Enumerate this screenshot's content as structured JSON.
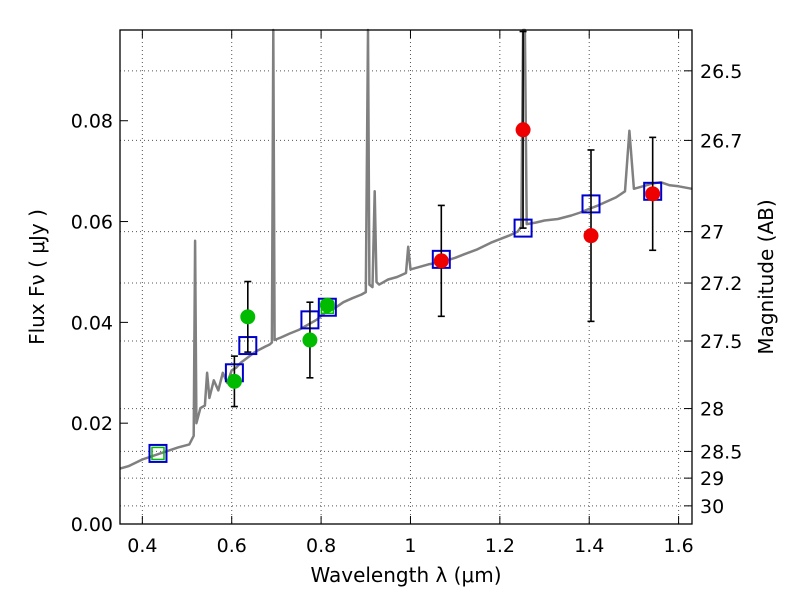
{
  "chart_data": {
    "type": "scatter",
    "xlabel": "Wavelength  λ (μm)",
    "ylabel": "Flux  Fν  ( μJy )",
    "y2label": "Magnitude (AB)",
    "xlim": [
      0.35,
      1.63
    ],
    "ylim": [
      0.0,
      0.098
    ],
    "grid": true,
    "x_ticks": [
      0.4,
      0.6,
      0.8,
      1.0,
      1.2,
      1.4,
      1.6
    ],
    "x_tick_labels": [
      "0.4",
      "0.6",
      "0.8",
      "1",
      "1.2",
      "1.4",
      "1.6"
    ],
    "y_ticks": [
      0.0,
      0.02,
      0.04,
      0.06,
      0.08
    ],
    "y_tick_labels": [
      "0.00",
      "0.02",
      "0.04",
      "0.06",
      "0.08"
    ],
    "y2_ticks": [
      {
        "label": "26.5",
        "flux": 0.0899
      },
      {
        "label": "26.7",
        "flux": 0.0761
      },
      {
        "label": "27",
        "flux": 0.058
      },
      {
        "label": "27.2",
        "flux": 0.0478
      },
      {
        "label": "27.5",
        "flux": 0.0363
      },
      {
        "label": "28",
        "flux": 0.0229
      },
      {
        "label": "28.5",
        "flux": 0.0144
      },
      {
        "label": "29",
        "flux": 0.0091
      },
      {
        "label": "30",
        "flux": 0.0036
      }
    ],
    "colors": {
      "model": "#808080",
      "green": "#00bb00",
      "red": "#ee0000",
      "box": "#0000cc",
      "errorbar": "#000000",
      "grid": "#555555"
    },
    "series": [
      {
        "kind": "model_spectrum",
        "points": [
          [
            0.35,
            0.011
          ],
          [
            0.37,
            0.0115
          ],
          [
            0.4,
            0.0128
          ],
          [
            0.44,
            0.014
          ],
          [
            0.48,
            0.0152
          ],
          [
            0.505,
            0.0158
          ],
          [
            0.515,
            0.0175
          ],
          [
            0.518,
            0.0562
          ],
          [
            0.521,
            0.02
          ],
          [
            0.53,
            0.023
          ],
          [
            0.54,
            0.0235
          ],
          [
            0.545,
            0.03
          ],
          [
            0.55,
            0.025
          ],
          [
            0.56,
            0.0285
          ],
          [
            0.57,
            0.0265
          ],
          [
            0.58,
            0.03
          ],
          [
            0.59,
            0.028
          ],
          [
            0.6,
            0.0305
          ],
          [
            0.61,
            0.031
          ],
          [
            0.62,
            0.032
          ],
          [
            0.635,
            0.033
          ],
          [
            0.65,
            0.034
          ],
          [
            0.66,
            0.0345
          ],
          [
            0.675,
            0.0352
          ],
          [
            0.685,
            0.0356
          ],
          [
            0.69,
            0.036
          ],
          [
            0.693,
            0.098
          ],
          [
            0.696,
            0.0365
          ],
          [
            0.71,
            0.037
          ],
          [
            0.73,
            0.0378
          ],
          [
            0.75,
            0.0385
          ],
          [
            0.77,
            0.0395
          ],
          [
            0.79,
            0.0405
          ],
          [
            0.81,
            0.042
          ],
          [
            0.83,
            0.0428
          ],
          [
            0.85,
            0.044
          ],
          [
            0.87,
            0.0448
          ],
          [
            0.89,
            0.0455
          ],
          [
            0.9,
            0.046
          ],
          [
            0.905,
            0.098
          ],
          [
            0.908,
            0.0475
          ],
          [
            0.915,
            0.047
          ],
          [
            0.92,
            0.066
          ],
          [
            0.924,
            0.048
          ],
          [
            0.93,
            0.0475
          ],
          [
            0.95,
            0.0485
          ],
          [
            0.97,
            0.049
          ],
          [
            0.99,
            0.0498
          ],
          [
            0.995,
            0.055
          ],
          [
            1.0,
            0.0505
          ],
          [
            1.02,
            0.051
          ],
          [
            1.04,
            0.0515
          ],
          [
            1.07,
            0.052
          ],
          [
            1.1,
            0.0528
          ],
          [
            1.12,
            0.0535
          ],
          [
            1.15,
            0.0545
          ],
          [
            1.18,
            0.0558
          ],
          [
            1.2,
            0.0565
          ],
          [
            1.22,
            0.0572
          ],
          [
            1.24,
            0.058
          ],
          [
            1.248,
            0.059
          ],
          [
            1.252,
            0.098
          ],
          [
            1.256,
            0.098
          ],
          [
            1.26,
            0.0595
          ],
          [
            1.28,
            0.0598
          ],
          [
            1.3,
            0.0602
          ],
          [
            1.33,
            0.0605
          ],
          [
            1.36,
            0.0612
          ],
          [
            1.38,
            0.0618
          ],
          [
            1.4,
            0.0625
          ],
          [
            1.42,
            0.0632
          ],
          [
            1.44,
            0.064
          ],
          [
            1.46,
            0.0648
          ],
          [
            1.48,
            0.066
          ],
          [
            1.49,
            0.078
          ],
          [
            1.5,
            0.0665
          ],
          [
            1.52,
            0.067
          ],
          [
            1.54,
            0.0675
          ],
          [
            1.56,
            0.0678
          ],
          [
            1.58,
            0.0672
          ],
          [
            1.6,
            0.067
          ],
          [
            1.63,
            0.0665
          ]
        ]
      },
      {
        "kind": "synthetic_photometry_boxes",
        "points": [
          {
            "x": 0.435,
            "y": 0.014,
            "inner": "green"
          },
          {
            "x": 0.606,
            "y": 0.03,
            "inner": "none"
          },
          {
            "x": 0.636,
            "y": 0.0354,
            "inner": "none"
          },
          {
            "x": 0.775,
            "y": 0.0405,
            "inner": "none"
          },
          {
            "x": 0.814,
            "y": 0.043,
            "inner": "green"
          },
          {
            "x": 1.069,
            "y": 0.0525,
            "inner": "none"
          },
          {
            "x": 1.252,
            "y": 0.0587,
            "inner": "none"
          },
          {
            "x": 1.404,
            "y": 0.0635,
            "inner": "none"
          },
          {
            "x": 1.542,
            "y": 0.066,
            "inner": "none"
          }
        ]
      },
      {
        "kind": "observed_hst_acs",
        "color": "green",
        "points": [
          {
            "x": 0.606,
            "y": 0.0283,
            "err": 0.005
          },
          {
            "x": 0.636,
            "y": 0.0411,
            "err": 0.007
          },
          {
            "x": 0.775,
            "y": 0.0365,
            "err": 0.0075
          },
          {
            "x": 0.814,
            "y": 0.0434,
            "err": 0.0
          }
        ]
      },
      {
        "kind": "observed_hst_wfc3",
        "color": "red",
        "points": [
          {
            "x": 1.069,
            "y": 0.0522,
            "err": 0.011
          },
          {
            "x": 1.252,
            "y": 0.0782,
            "err": 0.0195
          },
          {
            "x": 1.404,
            "y": 0.0572,
            "err": 0.017
          },
          {
            "x": 1.542,
            "y": 0.0655,
            "err": 0.0112
          }
        ]
      }
    ]
  }
}
